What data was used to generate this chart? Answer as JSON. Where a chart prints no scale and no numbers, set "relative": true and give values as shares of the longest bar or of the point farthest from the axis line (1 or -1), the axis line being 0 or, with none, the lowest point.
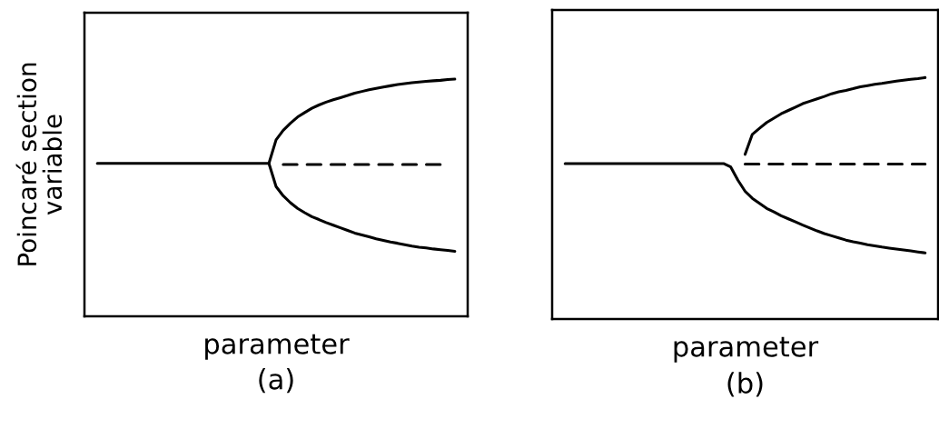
{
  "chart_data": [
    {
      "type": "line",
      "relative": true,
      "title": "(a)",
      "xlabel": "parameter",
      "ylabel": "Poincaré section\nvariable",
      "line_style": "solid",
      "categories": [
        null,
        null,
        null,
        null,
        null,
        null,
        null,
        null,
        null,
        null,
        null,
        null,
        null,
        null,
        null,
        null,
        null,
        null,
        null,
        null,
        null,
        null,
        null,
        null,
        null,
        null,
        null,
        null,
        null,
        null,
        null,
        null,
        null,
        null,
        null,
        null,
        null,
        null,
        null,
        null,
        null,
        null,
        null,
        null,
        null,
        null,
        null,
        null,
        null,
        null,
        null
      ],
      "series": [
        {
          "color": "#000000",
          "values": [
            0.645,
            0.645,
            0.645,
            0.645,
            0.645,
            0.645,
            0.645,
            0.645,
            0.645,
            0.645,
            0.645,
            0.645,
            0.645,
            0.645,
            0.645,
            0.645,
            0.645,
            0.645,
            0.645,
            0.645,
            0.645,
            0.645,
            0.645,
            0.645,
            0.645,
            0.744,
            0.784,
            0.814,
            0.84,
            0.859,
            0.877,
            0.891,
            0.903,
            0.913,
            0.922,
            0.931,
            0.941,
            0.948,
            0.955,
            0.961,
            0.967,
            0.972,
            0.977,
            0.981,
            0.985,
            0.988,
            0.991,
            0.993,
            0.995,
            0.998,
            1.0
          ]
        },
        {
          "color": "#000000",
          "values": [
            null,
            null,
            null,
            null,
            null,
            null,
            null,
            null,
            null,
            null,
            null,
            null,
            null,
            null,
            null,
            null,
            null,
            null,
            null,
            null,
            null,
            null,
            null,
            null,
            0.645,
            0.547,
            0.508,
            0.479,
            0.455,
            0.437,
            0.42,
            0.408,
            0.395,
            0.384,
            0.373,
            0.362,
            0.351,
            0.343,
            0.335,
            0.327,
            0.32,
            0.313,
            0.308,
            0.302,
            0.296,
            0.291,
            0.288,
            0.284,
            0.281,
            0.278,
            0.274
          ]
        },
        {
          "color": "#000000",
          "line_style": "dashed",
          "values": [
            null,
            null,
            null,
            null,
            null,
            null,
            null,
            null,
            null,
            null,
            null,
            null,
            null,
            null,
            null,
            null,
            null,
            null,
            null,
            null,
            null,
            null,
            null,
            null,
            null,
            null,
            0.64,
            0.64,
            0.64,
            0.64,
            0.64,
            0.64,
            0.64,
            0.64,
            0.64,
            0.64,
            0.64,
            0.64,
            0.64,
            0.64,
            0.64,
            0.64,
            0.64,
            0.64,
            0.64,
            0.64,
            0.64,
            0.64,
            0.64,
            null,
            null
          ]
        }
      ]
    },
    {
      "type": "line",
      "relative": true,
      "title": "(b)",
      "xlabel": "parameter",
      "line_style": "solid",
      "categories": [
        null,
        null,
        null,
        null,
        null,
        null,
        null,
        null,
        null,
        null,
        null,
        null,
        null,
        null,
        null,
        null,
        null,
        null,
        null,
        null,
        null,
        null,
        null,
        null,
        null,
        null,
        null,
        null,
        null,
        null,
        null,
        null,
        null,
        null,
        null,
        null,
        null,
        null,
        null,
        null,
        null,
        null,
        null,
        null,
        null,
        null,
        null,
        null,
        null,
        null,
        null
      ],
      "series": [
        {
          "color": "#000000",
          "values": [
            0.644,
            0.644,
            0.644,
            0.644,
            0.644,
            0.644,
            0.644,
            0.644,
            0.644,
            0.644,
            0.644,
            0.644,
            0.644,
            0.644,
            0.644,
            0.644,
            0.644,
            0.644,
            0.644,
            0.644,
            0.644,
            0.644,
            0.644,
            0.63,
            0.575,
            0.529,
            0.5,
            0.479,
            0.458,
            0.444,
            0.428,
            0.415,
            0.402,
            0.389,
            0.377,
            0.365,
            0.354,
            0.345,
            0.336,
            0.327,
            0.32,
            0.314,
            0.308,
            0.303,
            0.298,
            0.294,
            0.29,
            0.286,
            0.282,
            0.278,
            0.274
          ]
        },
        {
          "color": "#000000",
          "values": [
            null,
            null,
            null,
            null,
            null,
            null,
            null,
            null,
            null,
            null,
            null,
            null,
            null,
            null,
            null,
            null,
            null,
            null,
            null,
            null,
            null,
            null,
            null,
            null,
            null,
            0.682,
            0.765,
            0.79,
            0.814,
            0.832,
            0.85,
            0.864,
            0.878,
            0.892,
            0.902,
            0.912,
            0.922,
            0.933,
            0.941,
            0.947,
            0.954,
            0.962,
            0.967,
            0.972,
            0.976,
            0.981,
            0.985,
            0.989,
            0.993,
            0.996,
            1.0
          ]
        },
        {
          "color": "#000000",
          "line_style": "dashed",
          "values": [
            null,
            null,
            null,
            null,
            null,
            null,
            null,
            null,
            null,
            null,
            null,
            null,
            null,
            null,
            null,
            null,
            null,
            null,
            null,
            null,
            null,
            null,
            null,
            null,
            null,
            0.642,
            0.642,
            0.642,
            0.642,
            0.642,
            0.642,
            0.642,
            0.642,
            0.642,
            0.642,
            0.642,
            0.642,
            0.642,
            0.642,
            0.642,
            0.642,
            0.642,
            0.642,
            0.642,
            0.642,
            0.642,
            0.642,
            0.642,
            0.642,
            0.642,
            0.642
          ]
        }
      ]
    }
  ]
}
